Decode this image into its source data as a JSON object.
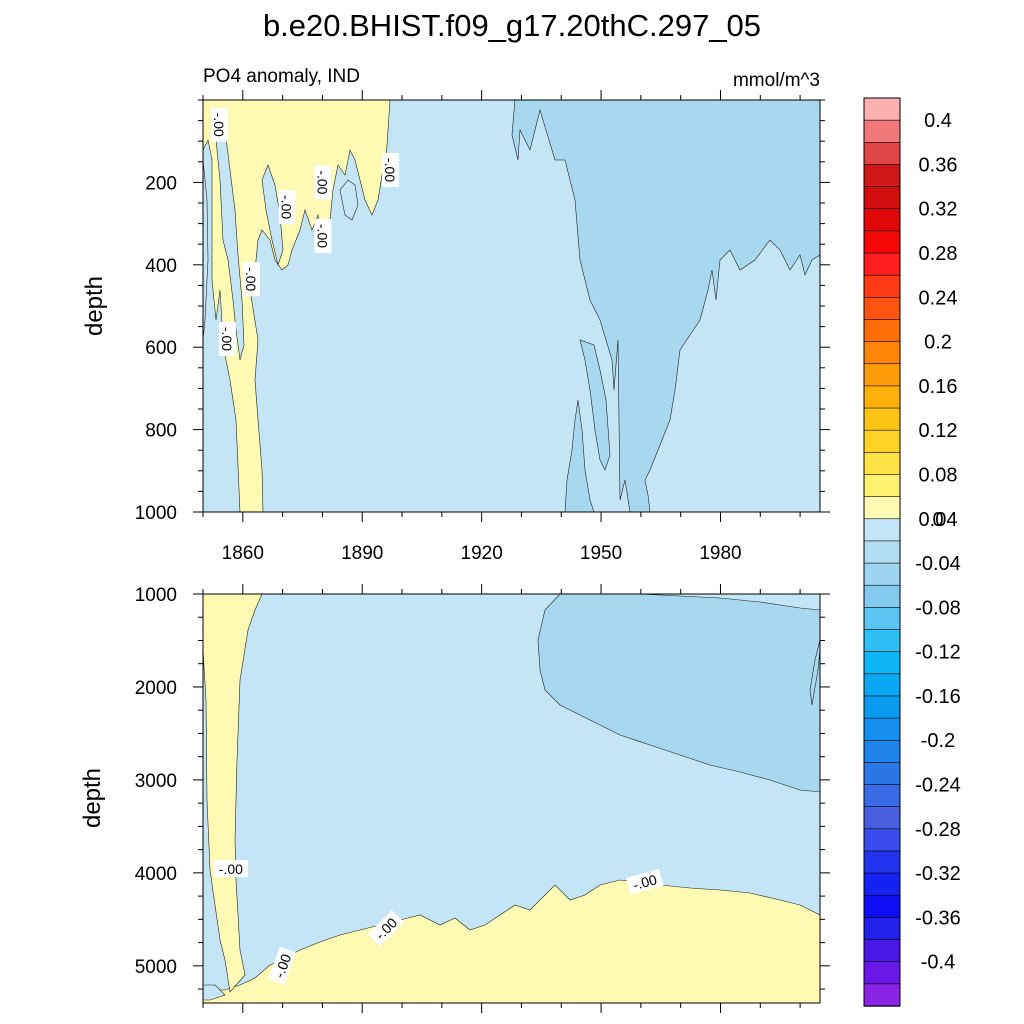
{
  "title": "b.e20.BHIST.f09_g17.20thC.297_05",
  "subtitle_left": "PO4 anomaly, IND",
  "units": "mmol/m^3",
  "chart_data": [
    {
      "type": "heatmap",
      "panel": "upper",
      "ylabel": "depth",
      "xlim": [
        1850,
        2005
      ],
      "ylim": [
        1000,
        0
      ],
      "x_ticks": [
        1860,
        1890,
        1920,
        1950,
        1980
      ],
      "y_ticks": [
        200,
        400,
        600,
        800,
        1000
      ],
      "contour_labels": [
        {
          "text": "-.00",
          "x": 1854,
          "y": 60,
          "rotation": 90
        },
        {
          "text": "-.00",
          "x": 1871,
          "y": 260,
          "rotation": 90
        },
        {
          "text": "-.00",
          "x": 1880,
          "y": 200,
          "rotation": 90
        },
        {
          "text": "-.00",
          "x": 1880,
          "y": 330,
          "rotation": 90
        },
        {
          "text": "-.00",
          "x": 1897,
          "y": 170,
          "rotation": 90
        },
        {
          "text": "-.00",
          "x": 1862,
          "y": 435,
          "rotation": 90
        },
        {
          "text": "-.00",
          "x": 1856,
          "y": 580,
          "rotation": 90
        }
      ],
      "regions": [
        {
          "band": "0 to 0.02",
          "color": "#fffab3",
          "description": "positive anomaly tongues, 1852-1900 shallow"
        },
        {
          "band": "-0.02 to 0",
          "color": "#c4e5f5",
          "description": "background"
        },
        {
          "band": "-0.04 to -0.02",
          "color": "#a8d7f0",
          "description": "negative anomaly, 1940-2005"
        }
      ]
    },
    {
      "type": "heatmap",
      "panel": "lower",
      "ylabel": "depth",
      "xlim": [
        1850,
        2005
      ],
      "ylim": [
        5400,
        1000
      ],
      "y_ticks": [
        1000,
        2000,
        3000,
        4000,
        5000
      ],
      "contour_labels": [
        {
          "text": "-.00",
          "x": 1857,
          "y": 3960,
          "rotation": 0
        },
        {
          "text": "-.00",
          "x": 1896,
          "y": 4600,
          "rotation": -45
        },
        {
          "text": "-.00",
          "x": 1870,
          "y": 5000,
          "rotation": -70
        },
        {
          "text": "-.00",
          "x": 1961,
          "y": 4100,
          "rotation": -15
        }
      ],
      "regions": [
        {
          "band": "0 to 0.02",
          "color": "#fffab3",
          "description": "deep positive anomaly and western edge"
        },
        {
          "band": "-0.02 to 0",
          "color": "#c4e5f5",
          "description": "background"
        },
        {
          "band": "-0.04 to -0.02",
          "color": "#a8d7f0",
          "description": "negative anomaly 1000-3000 m after 1965"
        }
      ]
    }
  ],
  "colorbar": {
    "labels": [
      "0.4",
      "0.36",
      "0.32",
      "0.28",
      "0.24",
      "0.2",
      "0.16",
      "0.12",
      "0.08",
      "0.04",
      "0",
      "-0.04",
      "-0.08",
      "-0.12",
      "-0.16",
      "-0.2",
      "-0.24",
      "-0.28",
      "-0.32",
      "-0.36",
      "-0.4"
    ],
    "colors": [
      "#fcb1b1",
      "#f07878",
      "#e04545",
      "#d11818",
      "#d10d0d",
      "#e00808",
      "#f50808",
      "#ff1f1f",
      "#ff3a14",
      "#ff5510",
      "#ff6e08",
      "#ff8608",
      "#ff9c08",
      "#ffb00a",
      "#ffc414",
      "#ffd426",
      "#ffe245",
      "#fff070",
      "#fffab3",
      "#c4e5f5",
      "#b3ddf2",
      "#9dd4ef",
      "#82caee",
      "#5cc4f2",
      "#2ebff5",
      "#0cb6f7",
      "#0aa7f2",
      "#0a9bf0",
      "#1690f0",
      "#1f83ec",
      "#2b77e8",
      "#3a6ae5",
      "#4a5fe0",
      "#3a4cec",
      "#2233ee",
      "#1622f2",
      "#0e0ef5",
      "#2020e8",
      "#4a18e6",
      "#6a18e8",
      "#8a25e5"
    ]
  }
}
